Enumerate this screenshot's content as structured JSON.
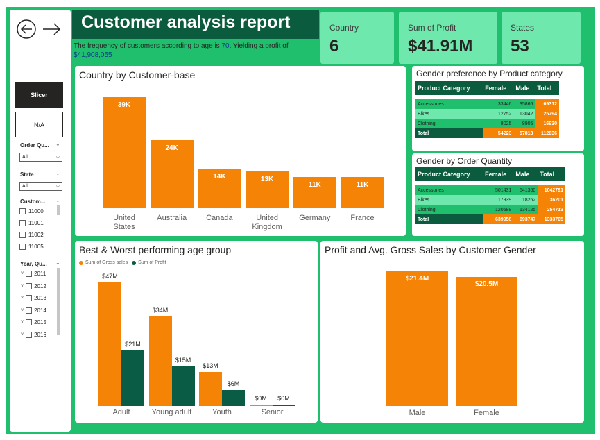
{
  "report": {
    "title": "Customer analysis report",
    "subtitle_prefix": "The frequency of customers according to age is ",
    "subtitle_freq": "70",
    "subtitle_mid": ". Yielding a profit of ",
    "subtitle_profit": "$41,908,055"
  },
  "kpis": [
    {
      "label": "Country",
      "value": "6"
    },
    {
      "label": "Sum of Profit",
      "value": "$41.91M"
    },
    {
      "label": "States",
      "value": "53"
    }
  ],
  "sidebar": {
    "slicer_label": "Slicer",
    "na_label": "N/A",
    "order_qty_label": "Order Qu...",
    "order_qty_value": "All",
    "state_label": "State",
    "state_value": "All",
    "customer_label": "Custom...",
    "customers": [
      "11000",
      "11001",
      "11002",
      "11005"
    ],
    "year_label": "Year, Qu...",
    "years": [
      "2011",
      "2012",
      "2013",
      "2014",
      "2015",
      "2016"
    ]
  },
  "tables": {
    "product": {
      "title": "Gender preference by Product category",
      "headers": [
        "Product Category",
        "Female",
        "Male",
        "Total"
      ],
      "rows": [
        [
          "Accessories",
          "33446",
          "35866",
          "69312"
        ],
        [
          "Bikes",
          "12752",
          "13042",
          "25794"
        ],
        [
          "Clothing",
          "8025",
          "8905",
          "16930"
        ]
      ],
      "total": [
        "Total",
        "54223",
        "57813",
        "112036"
      ]
    },
    "order": {
      "title": "Gender by Order Quantity",
      "headers": [
        "Product Category",
        "Female",
        "Male",
        "Total"
      ],
      "rows": [
        [
          "Accessories",
          "501431",
          "541360",
          "1042791"
        ],
        [
          "Bikes",
          "17939",
          "18262",
          "36201"
        ],
        [
          "Clothing",
          "120588",
          "134125",
          "254713"
        ]
      ],
      "total": [
        "Total",
        "639958",
        "693747",
        "1333705"
      ]
    }
  },
  "colors": {
    "orange": "#f48306",
    "dark_green": "#0b5c45",
    "green_bg": "#1fbf6e",
    "light_green": "#6ee8ac"
  },
  "chart_data": [
    {
      "type": "bar",
      "title": "Country by Customer-base",
      "categories": [
        "United States",
        "Australia",
        "Canada",
        "United Kingdom",
        "Germany",
        "France"
      ],
      "category_lines": [
        [
          "United",
          "States"
        ],
        [
          "Australia"
        ],
        [
          "Canada"
        ],
        [
          "United",
          "Kingdom"
        ],
        [
          "Germany"
        ],
        [
          "France"
        ]
      ],
      "values": [
        39000,
        24000,
        14000,
        13000,
        11000,
        11000
      ],
      "data_labels": [
        "39K",
        "24K",
        "14K",
        "13K",
        "11K",
        "11K"
      ],
      "ylim": [
        0,
        39000
      ]
    },
    {
      "type": "bar",
      "title": "Best & Worst performing age group",
      "categories": [
        "Adult",
        "Young adult",
        "Youth",
        "Senior"
      ],
      "series": [
        {
          "name": "Sum of Gross sales",
          "values": [
            47,
            34,
            13,
            0
          ],
          "labels": [
            "$47M",
            "$34M",
            "$13M",
            "$0M"
          ],
          "color": "#f48306"
        },
        {
          "name": "Sum of Profit",
          "values": [
            21,
            15,
            6,
            0
          ],
          "labels": [
            "$21M",
            "$15M",
            "$6M",
            "$0M"
          ],
          "color": "#0b5c45"
        }
      ],
      "ylim": [
        0,
        47
      ]
    },
    {
      "type": "bar",
      "title": "Profit and Avg. Gross Sales by Customer Gender",
      "categories": [
        "Male",
        "Female"
      ],
      "values": [
        21.4,
        20.5
      ],
      "data_labels": [
        "$21.4M",
        "$20.5M"
      ],
      "ylim": [
        0,
        21.4
      ]
    }
  ]
}
